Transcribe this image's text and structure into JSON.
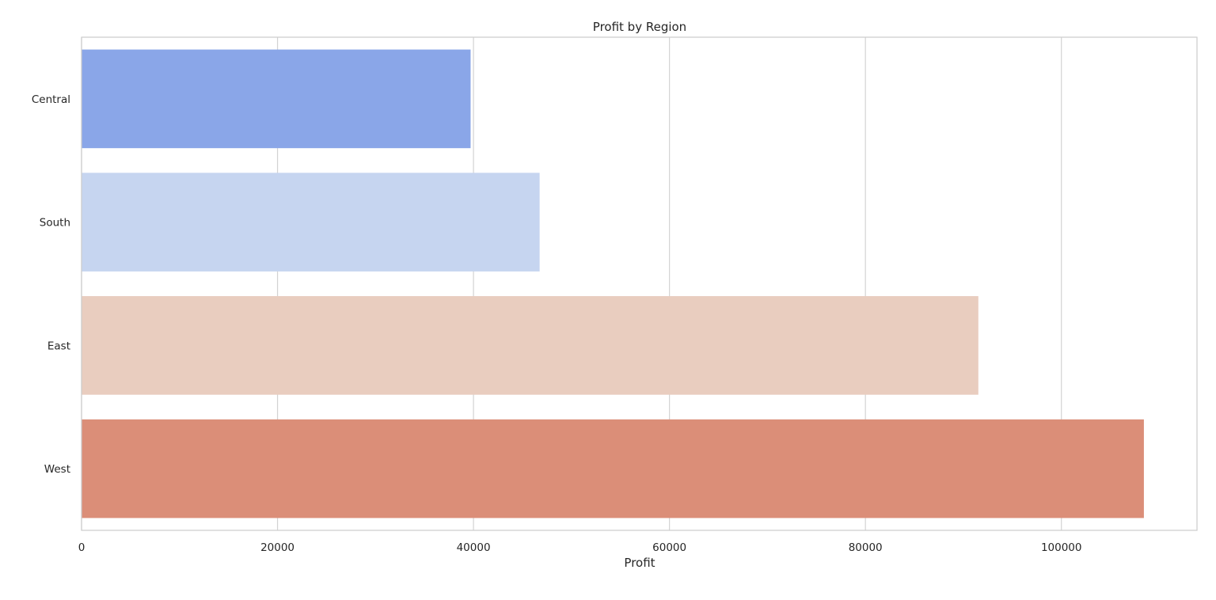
{
  "chart_data": {
    "type": "bar",
    "orientation": "horizontal",
    "title": "Profit by Region",
    "xlabel": "Profit",
    "ylabel": "",
    "categories": [
      "Central",
      "South",
      "East",
      "West"
    ],
    "values": [
      39706,
      46749,
      91523,
      108418
    ],
    "colors": [
      "#8aa6e8",
      "#c6d5f0",
      "#e9cdbf",
      "#db8e78"
    ],
    "xlim": [
      0,
      113839
    ],
    "xticks": [
      0,
      20000,
      40000,
      60000,
      80000,
      100000
    ],
    "xtick_labels": [
      "0",
      "20000",
      "40000",
      "60000",
      "80000",
      "100000"
    ],
    "grid": "vertical",
    "legend": "none"
  }
}
